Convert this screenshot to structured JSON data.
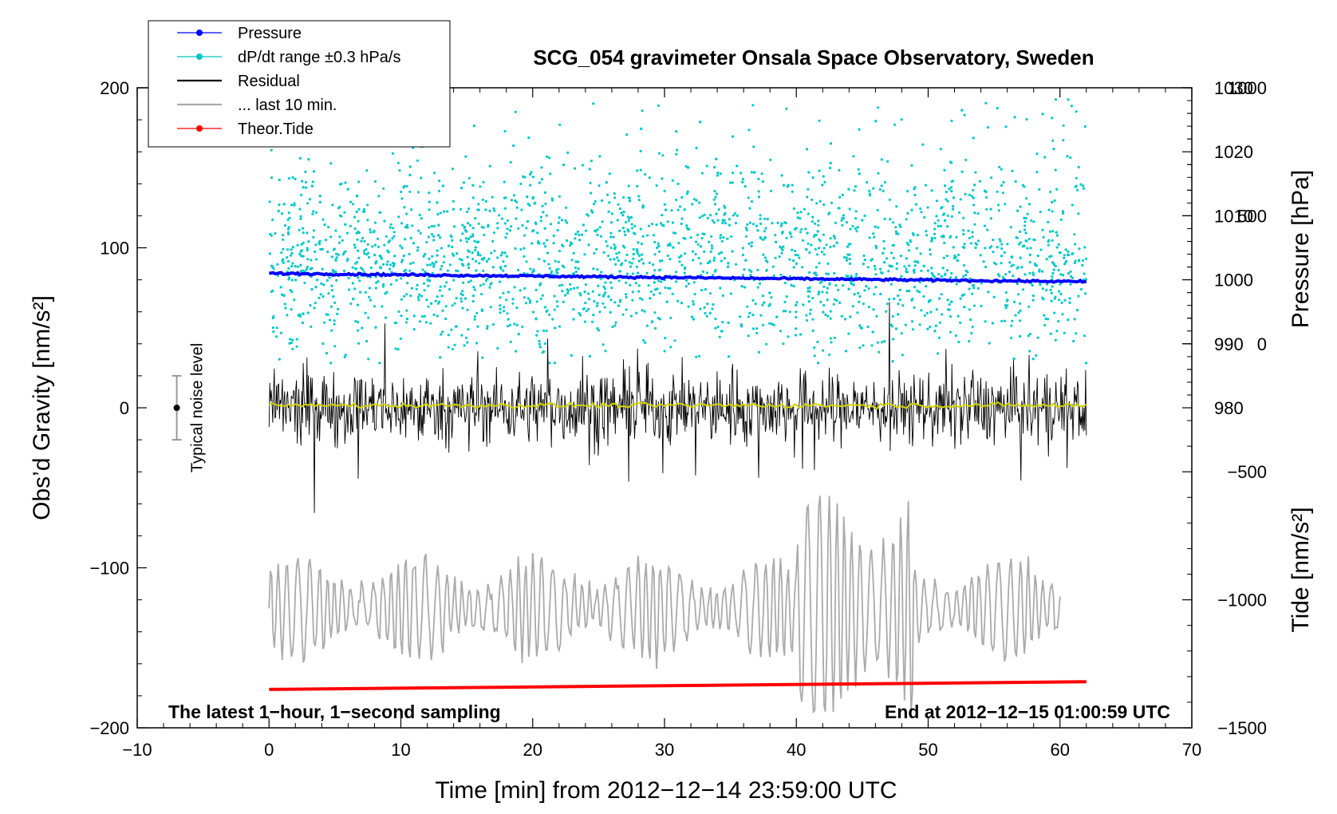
{
  "chart_data": {
    "type": "line",
    "title": "SCG_054 gravimeter Onsala Space Observatory, Sweden",
    "xlabel": "Time [min] from 2012−12−14 23:59:00 UTC",
    "ylabel_left": "Obs’d Gravity [nm/s²]",
    "ylabel_pressure": "Pressure [hPa]",
    "ylabel_tide": "Tide [nm/s²]",
    "xlim": [
      -10,
      70
    ],
    "ylim_left": [
      -200,
      200
    ],
    "ylim_pressure": [
      930,
      1030
    ],
    "ylim_tide": [
      -1500,
      1000
    ],
    "x_ticks": [
      "−10",
      "0",
      "10",
      "20",
      "30",
      "40",
      "50",
      "60",
      "70"
    ],
    "x_tick_values": [
      -10,
      0,
      10,
      20,
      30,
      40,
      50,
      60,
      70
    ],
    "y_left_ticks": [
      "−200",
      "−100",
      "0",
      "100",
      "200"
    ],
    "y_left_tick_values": [
      -200,
      -100,
      0,
      100,
      200
    ],
    "pressure_ticks": [
      "980",
      "990",
      "1000",
      "1010",
      "1020",
      "1030"
    ],
    "pressure_tick_values": [
      980,
      990,
      1000,
      1010,
      1020,
      1030
    ],
    "tide_ticks": [
      "−1500",
      "−1000",
      "−500",
      "0",
      "500",
      "1000"
    ],
    "tide_tick_values": [
      -1500,
      -1000,
      -500,
      0,
      500,
      1000
    ],
    "legend_position": "top-left",
    "legend": [
      {
        "name": "Pressure",
        "color": "#0000ff",
        "marker": true
      },
      {
        "name": "dP/dt range ±0.3 hPa/s",
        "color": "#00c8c8",
        "marker": true
      },
      {
        "name": "Residual",
        "color": "#000000",
        "marker": false
      },
      {
        "name": "... last 10 min.",
        "color": "#aaaaaa",
        "marker": false
      },
      {
        "name": "Theor.Tide",
        "color": "#ff0000",
        "marker": true
      }
    ],
    "series": [
      {
        "name": "Pressure",
        "axis": "pressure",
        "color": "#0000ff",
        "x": [
          0,
          62
        ],
        "values": [
          1001.0,
          999.7
        ]
      },
      {
        "name": "Theor.Tide",
        "axis": "tide",
        "color": "#ff0000",
        "x": [
          0,
          62
        ],
        "values": [
          -1350,
          -1320
        ]
      },
      {
        "name": "Residual",
        "axis": "left",
        "color": "#000000",
        "x_range": [
          0,
          62
        ],
        "approx_amplitude": 25
      },
      {
        "name": "... last 10 min.",
        "axis": "left",
        "color": "#aaaaaa",
        "x_range": [
          0,
          60
        ],
        "approx_center": -125
      },
      {
        "name": "dP/dt range ±0.3 hPa/s",
        "axis": "left",
        "color": "#00c8c8",
        "x_range": [
          0,
          62
        ]
      }
    ],
    "noise_bar": {
      "label": "Typical noise level",
      "x": -7,
      "center": 0,
      "half_range": 20
    },
    "annotations": {
      "bottom_left": "The latest 1−hour, 1−second sampling",
      "bottom_right": "End at 2012−12−15 01:00:59 UTC"
    },
    "colors": {
      "pressure": "#0000ff",
      "dpdt": "#00c8c8",
      "residual": "#000000",
      "last10": "#aaaaaa",
      "tide": "#ff0000",
      "smoothed": "#d4d400"
    }
  }
}
